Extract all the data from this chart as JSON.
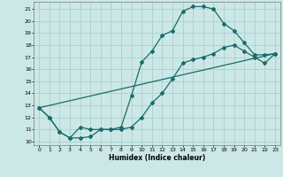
{
  "xlabel": "Humidex (Indice chaleur)",
  "bg_color": "#cce8e6",
  "grid_color": "#aacfcd",
  "line_color": "#1a6b6b",
  "xlim": [
    -0.5,
    23.5
  ],
  "ylim": [
    9.7,
    21.6
  ],
  "xticks": [
    0,
    1,
    2,
    3,
    4,
    5,
    6,
    7,
    8,
    9,
    10,
    11,
    12,
    13,
    14,
    15,
    16,
    17,
    18,
    19,
    20,
    21,
    22,
    23
  ],
  "yticks": [
    10,
    11,
    12,
    13,
    14,
    15,
    16,
    17,
    18,
    19,
    20,
    21
  ],
  "curve1_x": [
    0,
    1,
    2,
    3,
    4,
    5,
    6,
    7,
    8,
    9,
    10,
    11,
    12,
    13,
    14,
    15,
    16,
    17,
    18,
    19,
    20,
    21,
    22,
    23
  ],
  "curve1_y": [
    12.8,
    12.0,
    10.8,
    10.3,
    11.2,
    11.0,
    11.0,
    11.0,
    11.2,
    13.8,
    16.6,
    17.5,
    18.8,
    19.2,
    20.8,
    21.2,
    21.2,
    21.0,
    19.8,
    19.2,
    18.2,
    17.2,
    17.2,
    17.3
  ],
  "curve2_x": [
    0,
    1,
    2,
    3,
    4,
    5,
    6,
    7,
    8,
    9,
    10,
    11,
    12,
    13,
    14,
    15,
    16,
    17,
    18,
    19,
    20,
    21,
    22,
    23
  ],
  "curve2_y": [
    12.8,
    12.0,
    10.8,
    10.3,
    10.3,
    10.4,
    11.0,
    11.0,
    11.0,
    11.2,
    12.0,
    13.2,
    14.0,
    15.2,
    16.5,
    16.8,
    17.0,
    17.3,
    17.8,
    18.0,
    17.5,
    17.0,
    16.5,
    17.3
  ],
  "curve3_x": [
    0,
    23
  ],
  "curve3_y": [
    12.8,
    17.3
  ]
}
